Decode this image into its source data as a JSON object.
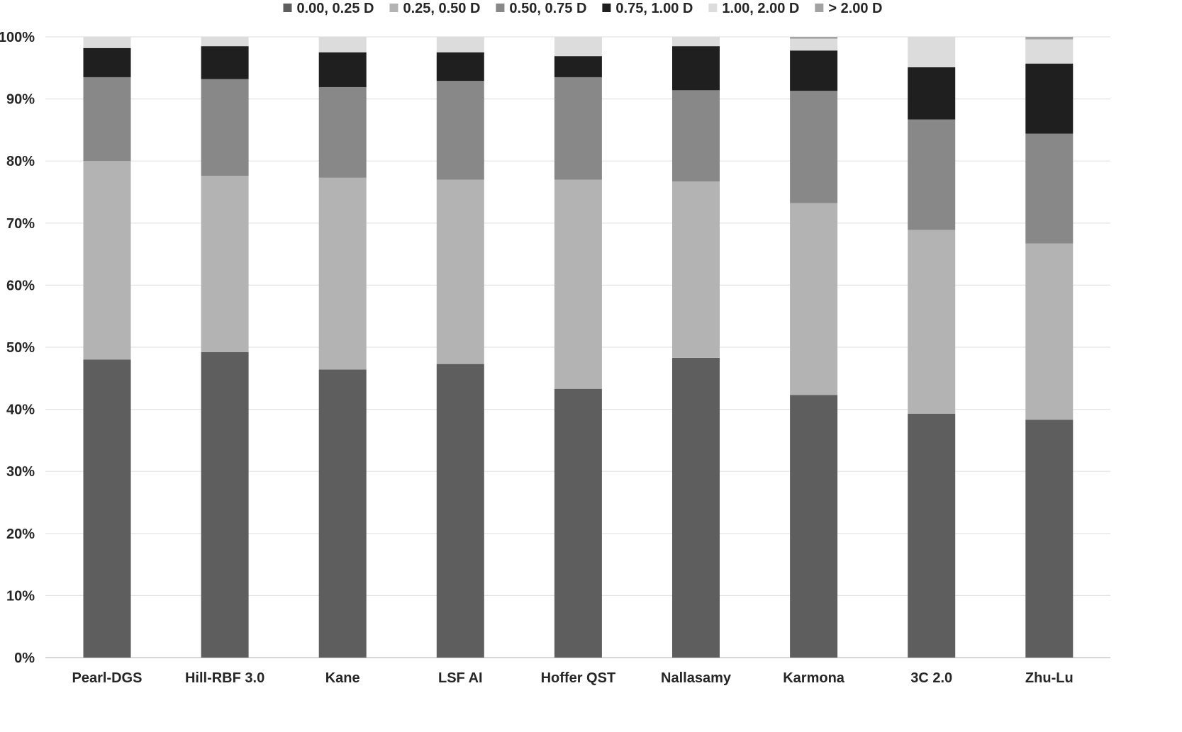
{
  "chart_data": {
    "type": "bar",
    "stacked": true,
    "percent_stacked": true,
    "title": "",
    "xlabel": "",
    "ylabel": "",
    "ylim": [
      0,
      100
    ],
    "y_ticks": [
      "0%",
      "10%",
      "20%",
      "30%",
      "40%",
      "50%",
      "60%",
      "70%",
      "80%",
      "90%",
      "100%"
    ],
    "y_tick_values": [
      0,
      10,
      20,
      30,
      40,
      50,
      60,
      70,
      80,
      90,
      100
    ],
    "grid": true,
    "legend_position": "top",
    "categories": [
      "Pearl-DGS",
      "Hill-RBF 3.0",
      "Kane",
      "LSF AI",
      "Hoffer QST",
      "Nallasamy",
      "Karmona",
      "3C 2.0",
      "Zhu-Lu"
    ],
    "series": [
      {
        "name": "0.00, 0.25 D",
        "color": "#5e5e5e",
        "values": [
          48.0,
          49.2,
          46.4,
          47.3,
          43.3,
          48.3,
          42.3,
          39.3,
          38.3
        ]
      },
      {
        "name": "0.25, 0.50 D",
        "color": "#b3b3b3",
        "values": [
          32.0,
          28.4,
          30.9,
          29.7,
          33.7,
          28.4,
          30.9,
          29.6,
          28.4
        ]
      },
      {
        "name": "0.50, 0.75 D",
        "color": "#888888",
        "values": [
          13.5,
          15.6,
          14.6,
          15.9,
          16.5,
          14.7,
          18.1,
          17.8,
          17.7
        ]
      },
      {
        "name": "0.75, 1.00 D",
        "color": "#1f1f1f",
        "values": [
          4.7,
          5.3,
          5.6,
          4.6,
          3.4,
          7.1,
          6.5,
          8.4,
          11.3
        ]
      },
      {
        "name": "1.00, 2.00 D",
        "color": "#dcdcdc",
        "values": [
          1.8,
          1.5,
          2.5,
          2.5,
          3.1,
          1.5,
          1.9,
          4.9,
          3.9
        ]
      },
      {
        "name": "> 2.00 D",
        "color": "#a2a2a2",
        "values": [
          0.0,
          0.0,
          0.0,
          0.0,
          0.0,
          0.0,
          0.3,
          0.0,
          0.4
        ]
      }
    ]
  }
}
